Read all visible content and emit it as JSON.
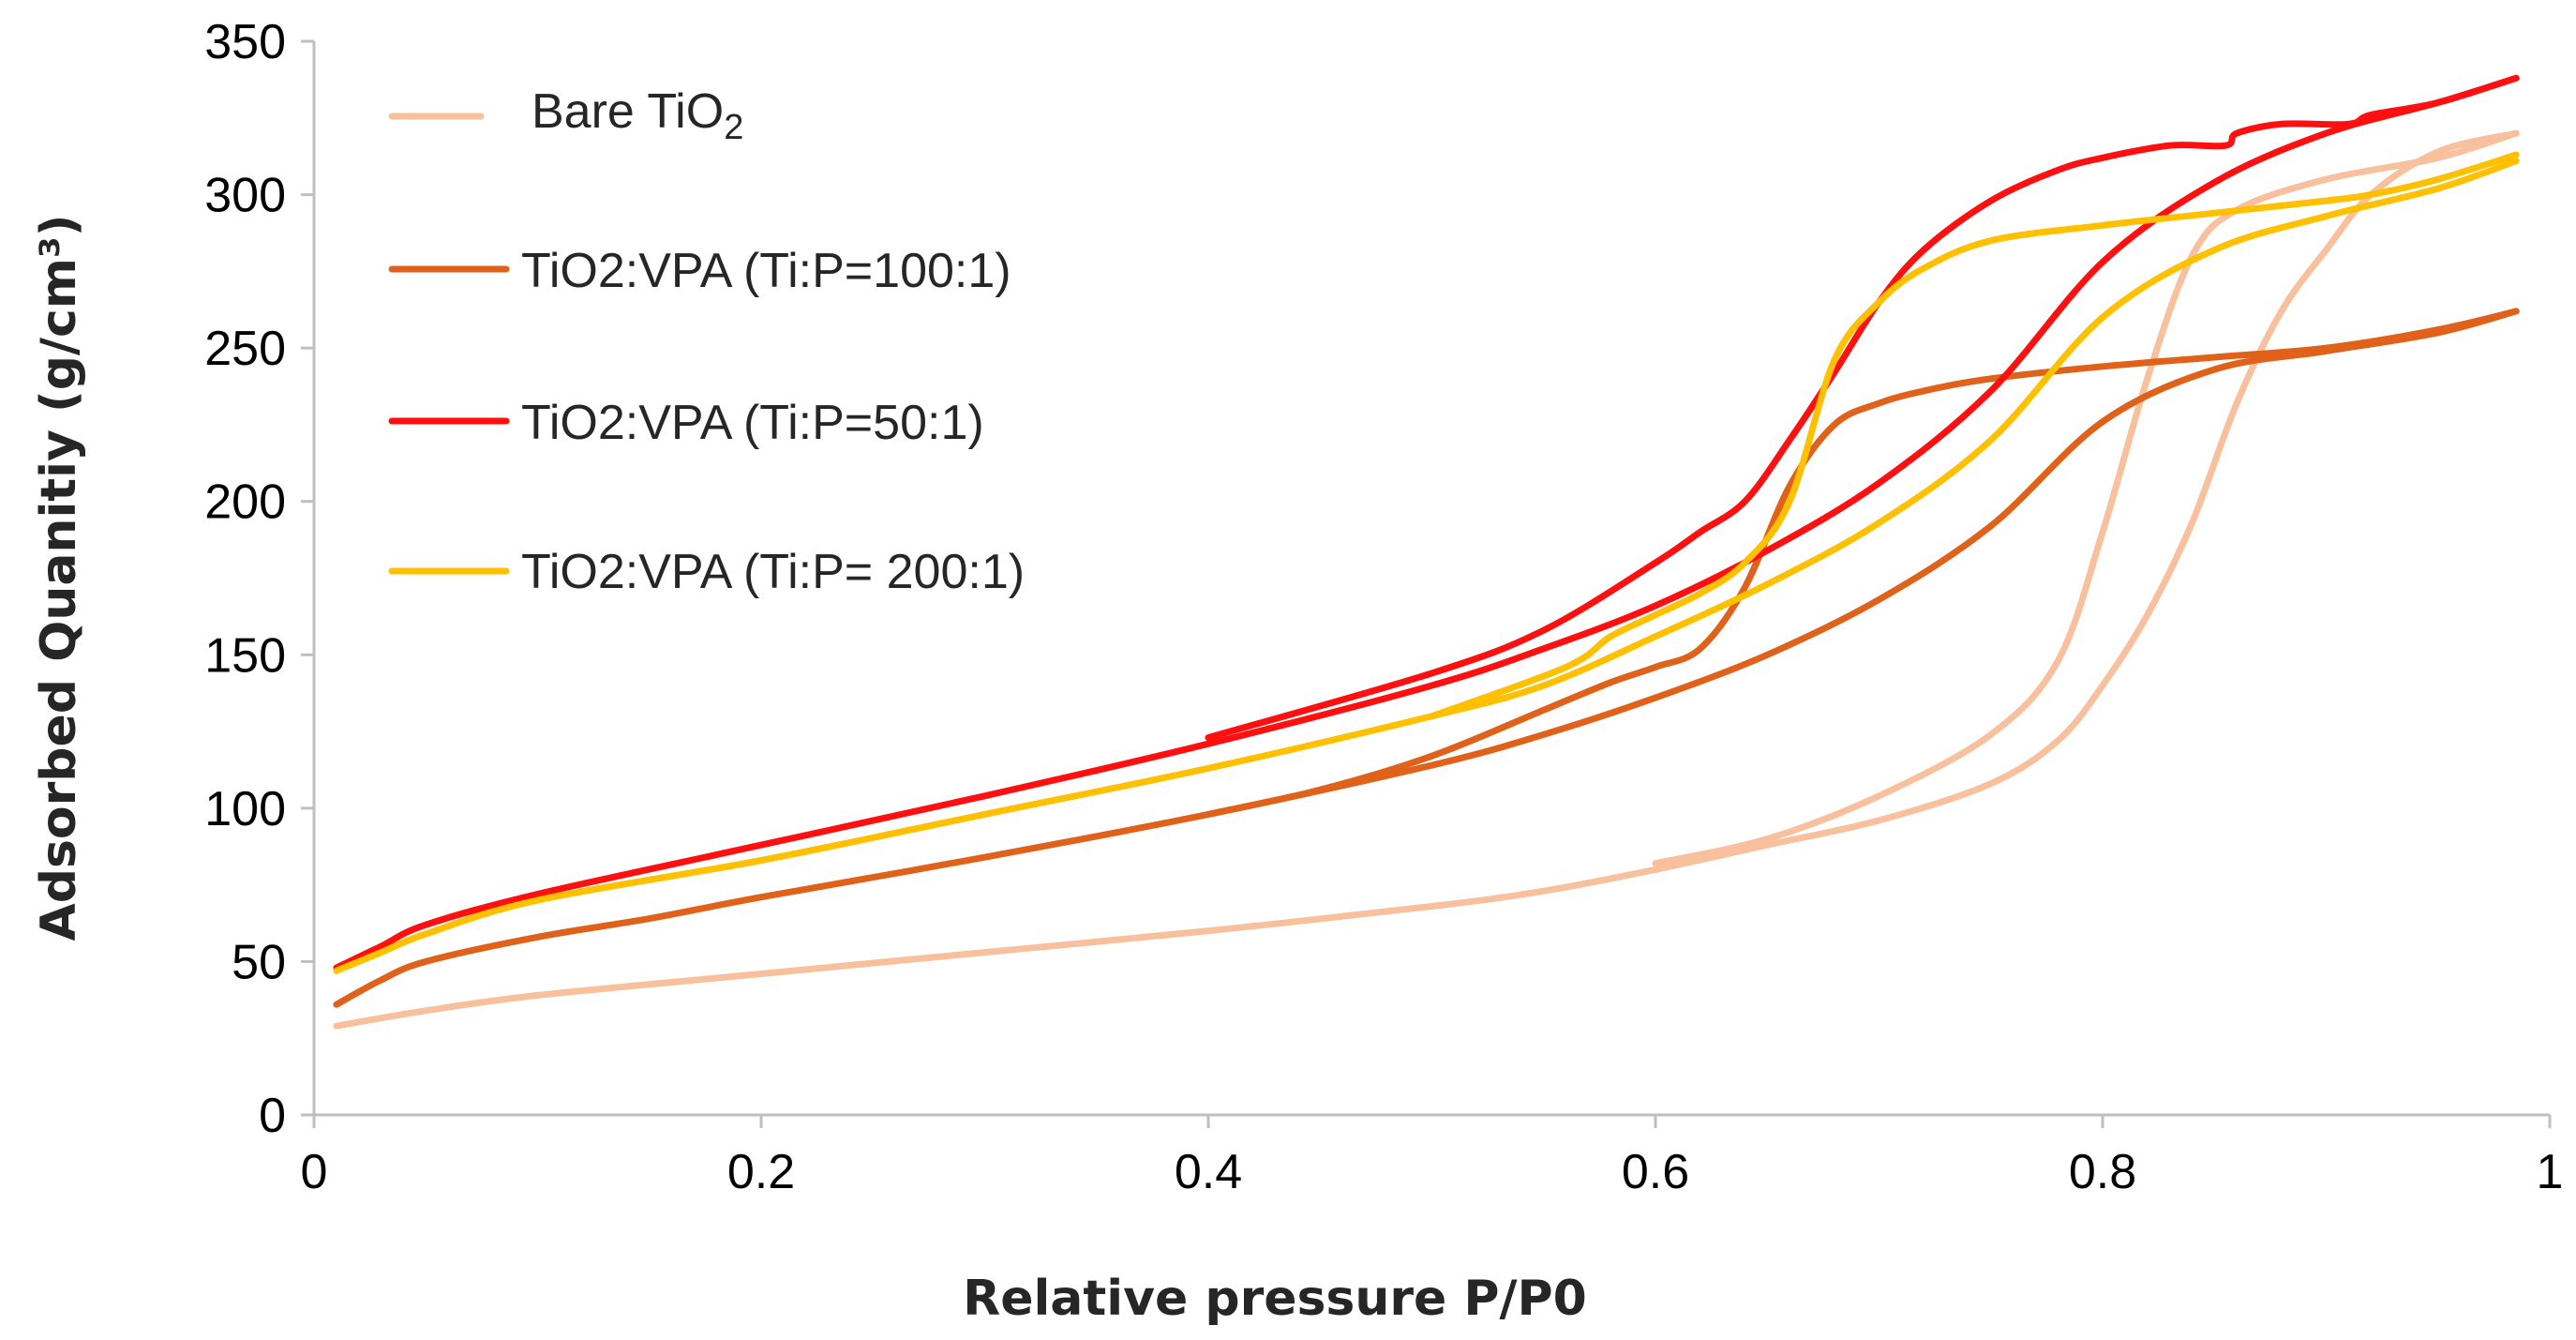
{
  "chart_data": {
    "type": "line",
    "title": "",
    "xlabel": "Relative pressure P/P0",
    "ylabel": "Adsorbed Quanitiy (g/cm³)",
    "xlim": [
      0,
      1
    ],
    "ylim": [
      0,
      350
    ],
    "xticks": [
      0,
      0.2,
      0.4,
      0.6,
      0.8,
      1
    ],
    "xtick_labels": [
      "0",
      "0.2",
      "0.4",
      "0.6",
      "0.8",
      "1"
    ],
    "yticks": [
      0,
      50,
      100,
      150,
      200,
      250,
      300,
      350
    ],
    "ytick_labels": [
      "0",
      "50",
      "100",
      "150",
      "200",
      "250",
      "300",
      "350"
    ],
    "grid": false,
    "legend_position": "top-left",
    "series": [
      {
        "name": "Bare TiO2",
        "color": "#f8c09c",
        "adsorption": [
          [
            0.01,
            29
          ],
          [
            0.05,
            34
          ],
          [
            0.1,
            39
          ],
          [
            0.2,
            46
          ],
          [
            0.3,
            53
          ],
          [
            0.4,
            60
          ],
          [
            0.5,
            68
          ],
          [
            0.55,
            73
          ],
          [
            0.6,
            80
          ],
          [
            0.65,
            88
          ],
          [
            0.7,
            96
          ],
          [
            0.75,
            108
          ],
          [
            0.78,
            122
          ],
          [
            0.8,
            140
          ],
          [
            0.82,
            163
          ],
          [
            0.84,
            193
          ],
          [
            0.86,
            232
          ],
          [
            0.88,
            262
          ],
          [
            0.9,
            282
          ],
          [
            0.92,
            300
          ],
          [
            0.95,
            314
          ],
          [
            0.985,
            320
          ]
        ],
        "desorption": [
          [
            0.985,
            320
          ],
          [
            0.95,
            312
          ],
          [
            0.9,
            305
          ],
          [
            0.86,
            295
          ],
          [
            0.84,
            280
          ],
          [
            0.82,
            240
          ],
          [
            0.8,
            190
          ],
          [
            0.78,
            148
          ],
          [
            0.75,
            124
          ],
          [
            0.7,
            104
          ],
          [
            0.65,
            90
          ],
          [
            0.6,
            82
          ]
        ]
      },
      {
        "name": "TiO2:VPA (Ti:P=100:1)",
        "color": "#e0621a",
        "adsorption": [
          [
            0.01,
            36
          ],
          [
            0.03,
            44
          ],
          [
            0.05,
            50
          ],
          [
            0.1,
            58
          ],
          [
            0.15,
            64
          ],
          [
            0.2,
            71
          ],
          [
            0.3,
            84
          ],
          [
            0.4,
            98
          ],
          [
            0.5,
            114
          ],
          [
            0.55,
            124
          ],
          [
            0.6,
            136
          ],
          [
            0.65,
            150
          ],
          [
            0.7,
            168
          ],
          [
            0.75,
            192
          ],
          [
            0.8,
            226
          ],
          [
            0.85,
            243
          ],
          [
            0.9,
            249
          ],
          [
            0.95,
            255
          ],
          [
            0.985,
            262
          ]
        ],
        "desorption": [
          [
            0.985,
            262
          ],
          [
            0.95,
            256
          ],
          [
            0.9,
            250
          ],
          [
            0.85,
            247
          ],
          [
            0.8,
            244
          ],
          [
            0.75,
            240
          ],
          [
            0.72,
            236
          ],
          [
            0.7,
            232
          ],
          [
            0.68,
            225
          ],
          [
            0.66,
            205
          ],
          [
            0.64,
            172
          ],
          [
            0.62,
            152
          ],
          [
            0.6,
            146
          ],
          [
            0.58,
            141
          ],
          [
            0.55,
            132
          ],
          [
            0.5,
            117
          ],
          [
            0.45,
            106
          ],
          [
            0.4,
            98
          ]
        ]
      },
      {
        "name": "TiO2:VPA (Ti:P=50:1)",
        "color": "#ff0f0f",
        "adsorption": [
          [
            0.01,
            48
          ],
          [
            0.03,
            55
          ],
          [
            0.05,
            62
          ],
          [
            0.1,
            72
          ],
          [
            0.2,
            88
          ],
          [
            0.3,
            104
          ],
          [
            0.4,
            121
          ],
          [
            0.5,
            140
          ],
          [
            0.55,
            152
          ],
          [
            0.6,
            166
          ],
          [
            0.65,
            184
          ],
          [
            0.7,
            206
          ],
          [
            0.75,
            236
          ],
          [
            0.8,
            278
          ],
          [
            0.85,
            304
          ],
          [
            0.9,
            320
          ],
          [
            0.95,
            330
          ],
          [
            0.985,
            338
          ]
        ],
        "desorption": [
          [
            0.985,
            338
          ],
          [
            0.95,
            330
          ],
          [
            0.92,
            326
          ],
          [
            0.91,
            323
          ],
          [
            0.88,
            323
          ],
          [
            0.86,
            320
          ],
          [
            0.855,
            316
          ],
          [
            0.83,
            316
          ],
          [
            0.8,
            312
          ],
          [
            0.78,
            308
          ],
          [
            0.75,
            298
          ],
          [
            0.72,
            282
          ],
          [
            0.7,
            265
          ],
          [
            0.68,
            242
          ],
          [
            0.66,
            220
          ],
          [
            0.64,
            200
          ],
          [
            0.62,
            190
          ],
          [
            0.6,
            180
          ],
          [
            0.55,
            158
          ],
          [
            0.5,
            144
          ],
          [
            0.4,
            123
          ]
        ]
      },
      {
        "name": "TiO2:VPA (Ti:P= 200:1)",
        "color": "#ffc000",
        "adsorption": [
          [
            0.01,
            47
          ],
          [
            0.03,
            53
          ],
          [
            0.05,
            59
          ],
          [
            0.1,
            70
          ],
          [
            0.2,
            83
          ],
          [
            0.3,
            98
          ],
          [
            0.4,
            113
          ],
          [
            0.5,
            130
          ],
          [
            0.55,
            140
          ],
          [
            0.6,
            156
          ],
          [
            0.65,
            173
          ],
          [
            0.7,
            193
          ],
          [
            0.75,
            220
          ],
          [
            0.8,
            260
          ],
          [
            0.85,
            282
          ],
          [
            0.9,
            293
          ],
          [
            0.95,
            302
          ],
          [
            0.985,
            311
          ]
        ],
        "desorption": [
          [
            0.985,
            313
          ],
          [
            0.95,
            305
          ],
          [
            0.92,
            300
          ],
          [
            0.9,
            298
          ],
          [
            0.85,
            294
          ],
          [
            0.8,
            290
          ],
          [
            0.75,
            285
          ],
          [
            0.72,
            276
          ],
          [
            0.7,
            265
          ],
          [
            0.68,
            246
          ],
          [
            0.66,
            200
          ],
          [
            0.64,
            180
          ],
          [
            0.62,
            170
          ],
          [
            0.6,
            163
          ],
          [
            0.58,
            156
          ],
          [
            0.56,
            146
          ],
          [
            0.5,
            130
          ]
        ]
      }
    ]
  }
}
